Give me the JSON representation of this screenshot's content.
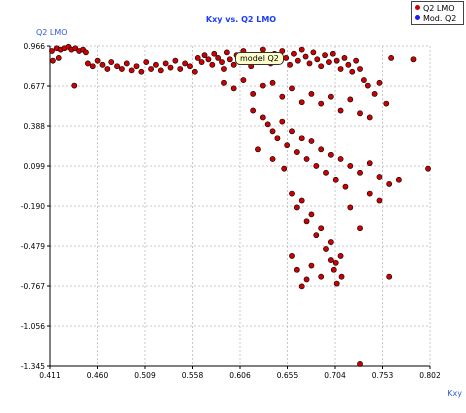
{
  "chart_data": {
    "type": "scatter",
    "title": "Kxy vs. Q2 LMO",
    "xlabel": "Kxy",
    "ylabel": "Q2 LMO",
    "xlim": [
      0.411,
      0.802
    ],
    "ylim": [
      -1.345,
      0.966
    ],
    "x_ticks": [
      "0.411",
      "0.460",
      "0.509",
      "0.558",
      "0.606",
      "0.655",
      "0.704",
      "0.753",
      "0.802"
    ],
    "y_ticks": [
      "0.966",
      "0.677",
      "0.388",
      "0.099",
      "-0.190",
      "-0.479",
      "-0.767",
      "-1.056",
      "-1.345"
    ],
    "grid": true,
    "legend_position": "top-right",
    "series": [
      {
        "name": "Q2 LMO",
        "color": "#cc0000",
        "points": [
          [
            0.413,
            0.93
          ],
          [
            0.418,
            0.95
          ],
          [
            0.422,
            0.94
          ],
          [
            0.426,
            0.95
          ],
          [
            0.43,
            0.96
          ],
          [
            0.433,
            0.94
          ],
          [
            0.437,
            0.95
          ],
          [
            0.441,
            0.93
          ],
          [
            0.445,
            0.94
          ],
          [
            0.448,
            0.92
          ],
          [
            0.414,
            0.86
          ],
          [
            0.42,
            0.88
          ],
          [
            0.436,
            0.68
          ],
          [
            0.45,
            0.84
          ],
          [
            0.455,
            0.82
          ],
          [
            0.46,
            0.86
          ],
          [
            0.465,
            0.83
          ],
          [
            0.47,
            0.8
          ],
          [
            0.474,
            0.85
          ],
          [
            0.48,
            0.82
          ],
          [
            0.485,
            0.8
          ],
          [
            0.49,
            0.84
          ],
          [
            0.495,
            0.79
          ],
          [
            0.5,
            0.82
          ],
          [
            0.505,
            0.78
          ],
          [
            0.51,
            0.85
          ],
          [
            0.515,
            0.8
          ],
          [
            0.52,
            0.83
          ],
          [
            0.525,
            0.79
          ],
          [
            0.53,
            0.84
          ],
          [
            0.535,
            0.81
          ],
          [
            0.54,
            0.86
          ],
          [
            0.545,
            0.8
          ],
          [
            0.55,
            0.84
          ],
          [
            0.555,
            0.82
          ],
          [
            0.56,
            0.78
          ],
          [
            0.563,
            0.88
          ],
          [
            0.567,
            0.85
          ],
          [
            0.57,
            0.9
          ],
          [
            0.574,
            0.87
          ],
          [
            0.578,
            0.83
          ],
          [
            0.58,
            0.91
          ],
          [
            0.584,
            0.88
          ],
          [
            0.588,
            0.85
          ],
          [
            0.59,
            0.8
          ],
          [
            0.593,
            0.92
          ],
          [
            0.596,
            0.87
          ],
          [
            0.6,
            0.83
          ],
          [
            0.603,
            0.9
          ],
          [
            0.606,
            0.85
          ],
          [
            0.61,
            0.93
          ],
          [
            0.614,
            0.88
          ],
          [
            0.618,
            0.82
          ],
          [
            0.622,
            0.9
          ],
          [
            0.626,
            0.86
          ],
          [
            0.63,
            0.94
          ],
          [
            0.634,
            0.89
          ],
          [
            0.638,
            0.84
          ],
          [
            0.642,
            0.91
          ],
          [
            0.646,
            0.87
          ],
          [
            0.65,
            0.93
          ],
          [
            0.654,
            0.88
          ],
          [
            0.658,
            0.83
          ],
          [
            0.662,
            0.91
          ],
          [
            0.666,
            0.86
          ],
          [
            0.67,
            0.94
          ],
          [
            0.674,
            0.89
          ],
          [
            0.678,
            0.84
          ],
          [
            0.682,
            0.92
          ],
          [
            0.686,
            0.87
          ],
          [
            0.69,
            0.82
          ],
          [
            0.694,
            0.9
          ],
          [
            0.698,
            0.85
          ],
          [
            0.702,
            0.91
          ],
          [
            0.706,
            0.86
          ],
          [
            0.71,
            0.8
          ],
          [
            0.714,
            0.88
          ],
          [
            0.718,
            0.83
          ],
          [
            0.722,
            0.78
          ],
          [
            0.726,
            0.86
          ],
          [
            0.73,
            0.8
          ],
          [
            0.734,
            0.72
          ],
          [
            0.738,
            0.68
          ],
          [
            0.745,
            0.62
          ],
          [
            0.75,
            0.7
          ],
          [
            0.757,
            0.55
          ],
          [
            0.762,
            0.88
          ],
          [
            0.785,
            0.87
          ],
          [
            0.59,
            0.7
          ],
          [
            0.6,
            0.66
          ],
          [
            0.61,
            0.72
          ],
          [
            0.62,
            0.62
          ],
          [
            0.63,
            0.68
          ],
          [
            0.64,
            0.7
          ],
          [
            0.65,
            0.6
          ],
          [
            0.66,
            0.66
          ],
          [
            0.67,
            0.56
          ],
          [
            0.68,
            0.62
          ],
          [
            0.69,
            0.55
          ],
          [
            0.7,
            0.6
          ],
          [
            0.71,
            0.5
          ],
          [
            0.72,
            0.58
          ],
          [
            0.73,
            0.48
          ],
          [
            0.74,
            0.45
          ],
          [
            0.62,
            0.5
          ],
          [
            0.63,
            0.45
          ],
          [
            0.635,
            0.4
          ],
          [
            0.64,
            0.35
          ],
          [
            0.645,
            0.3
          ],
          [
            0.65,
            0.42
          ],
          [
            0.655,
            0.25
          ],
          [
            0.66,
            0.35
          ],
          [
            0.665,
            0.2
          ],
          [
            0.67,
            0.3
          ],
          [
            0.675,
            0.15
          ],
          [
            0.68,
            0.28
          ],
          [
            0.685,
            0.1
          ],
          [
            0.69,
            0.22
          ],
          [
            0.695,
            0.05
          ],
          [
            0.7,
            0.18
          ],
          [
            0.705,
            0.0
          ],
          [
            0.71,
            0.15
          ],
          [
            0.715,
            -0.05
          ],
          [
            0.72,
            0.1
          ],
          [
            0.73,
            0.05
          ],
          [
            0.74,
            0.12
          ],
          [
            0.75,
            0.02
          ],
          [
            0.76,
            -0.03
          ],
          [
            0.77,
            0.0
          ],
          [
            0.8,
            0.08
          ],
          [
            0.625,
            0.22
          ],
          [
            0.64,
            0.15
          ],
          [
            0.652,
            0.08
          ],
          [
            0.66,
            -0.1
          ],
          [
            0.665,
            -0.2
          ],
          [
            0.67,
            -0.15
          ],
          [
            0.675,
            -0.3
          ],
          [
            0.68,
            -0.25
          ],
          [
            0.685,
            -0.4
          ],
          [
            0.69,
            -0.35
          ],
          [
            0.695,
            -0.5
          ],
          [
            0.7,
            -0.45
          ],
          [
            0.705,
            -0.6
          ],
          [
            0.71,
            -0.55
          ],
          [
            0.72,
            -0.2
          ],
          [
            0.73,
            -0.35
          ],
          [
            0.74,
            -0.1
          ],
          [
            0.75,
            -0.15
          ],
          [
            0.66,
            -0.55
          ],
          [
            0.665,
            -0.65
          ],
          [
            0.675,
            -0.72
          ],
          [
            0.68,
            -0.62
          ],
          [
            0.69,
            -0.7
          ],
          [
            0.7,
            -0.58
          ],
          [
            0.703,
            -0.65
          ],
          [
            0.711,
            -0.7
          ],
          [
            0.76,
            -0.7
          ],
          [
            0.73,
            -1.33
          ],
          [
            0.67,
            -0.77
          ],
          [
            0.706,
            -0.75
          ]
        ]
      },
      {
        "name": "Mod. Q2",
        "color": "#1a1aff",
        "points": []
      }
    ],
    "annotations": [
      {
        "text": "model Q2",
        "x": 0.627,
        "y": 0.888
      }
    ]
  }
}
